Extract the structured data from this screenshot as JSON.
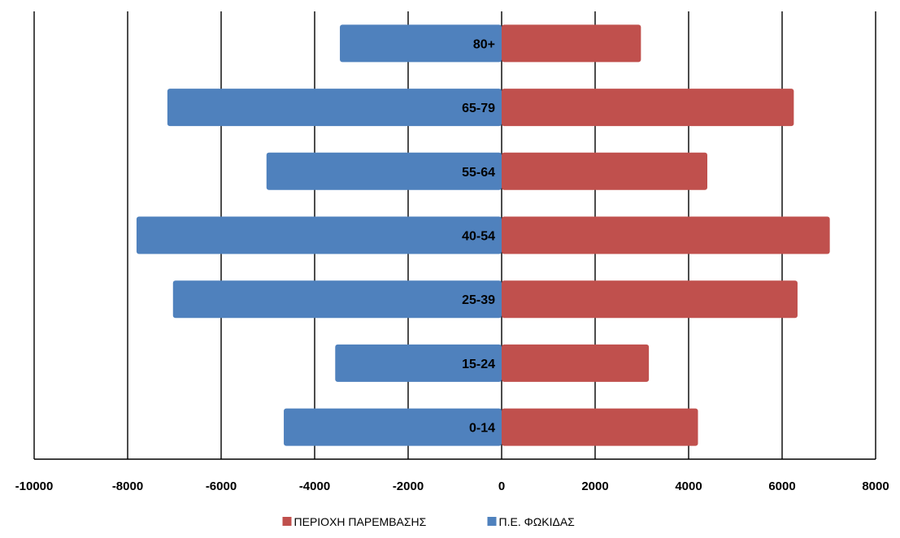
{
  "chart_data": {
    "type": "bar",
    "orientation": "horizontal",
    "categories": [
      "0-14",
      "15-24",
      "25-39",
      "40-54",
      "55-64",
      "65-79",
      "80+"
    ],
    "series": [
      {
        "name": "ΠΕΡΙΟΧΗ ΠΑΡΕΜΒΑΣΗΣ",
        "color": "#c0504d",
        "values": [
          4200,
          3150,
          6330,
          7020,
          4400,
          6250,
          2980
        ]
      },
      {
        "name": "Π.Ε. ΦΩΚΙΔΑΣ",
        "color": "#4f81bd",
        "values": [
          -4660,
          -3560,
          -7030,
          -7810,
          -5030,
          -7150,
          -3460
        ]
      }
    ],
    "xlim": [
      -10000,
      8000
    ],
    "xticks": [
      -10000,
      -8000,
      -6000,
      -4000,
      -2000,
      0,
      2000,
      4000,
      6000,
      8000
    ],
    "grid": "vertical",
    "legend": "bottom",
    "title": "",
    "xlabel": "",
    "ylabel": ""
  }
}
